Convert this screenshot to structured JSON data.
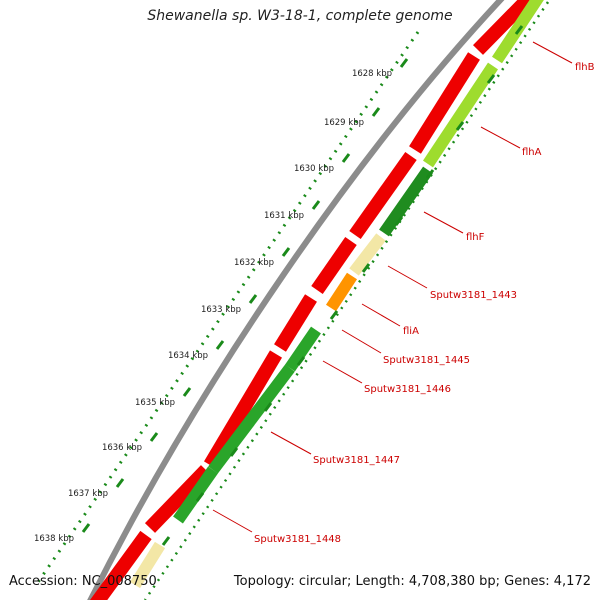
{
  "title": "Shewanella sp. W3-18-1, complete genome",
  "footer": {
    "accession": "Accession: NC_008750",
    "summary": "Topology: circular; Length: 4,708,380 bp; Genes: 4,172"
  },
  "colors": {
    "backbone": "#8c8c8c",
    "cds_red": "#ee0000",
    "cds_green": "#2aa52a",
    "cds_darkgreen": "#1f8c1f",
    "cds_lightgreen": "#9edc2e",
    "cds_cream": "#f3e7a6",
    "cds_orange": "#ff9400",
    "ticks_green": "#1a8a1a",
    "label_red": "#cc0000"
  },
  "scale_ticks": [
    {
      "label": "1628 kbp"
    },
    {
      "label": "1629 kbp"
    },
    {
      "label": "1630 kbp"
    },
    {
      "label": "1631 kbp"
    },
    {
      "label": "1632 kbp"
    },
    {
      "label": "1633 kbp"
    },
    {
      "label": "1634 kbp"
    },
    {
      "label": "1635 kbp"
    },
    {
      "label": "1636 kbp"
    },
    {
      "label": "1637 kbp"
    },
    {
      "label": "1638 kbp"
    }
  ],
  "gene_labels": [
    {
      "name": "flhB"
    },
    {
      "name": "flhA"
    },
    {
      "name": "flhF"
    },
    {
      "name": "Sputw3181_1443"
    },
    {
      "name": "fliA"
    },
    {
      "name": "Sputw3181_1445"
    },
    {
      "name": "Sputw3181_1446"
    },
    {
      "name": "Sputw3181_1447"
    },
    {
      "name": "Sputw3181_1448"
    }
  ]
}
